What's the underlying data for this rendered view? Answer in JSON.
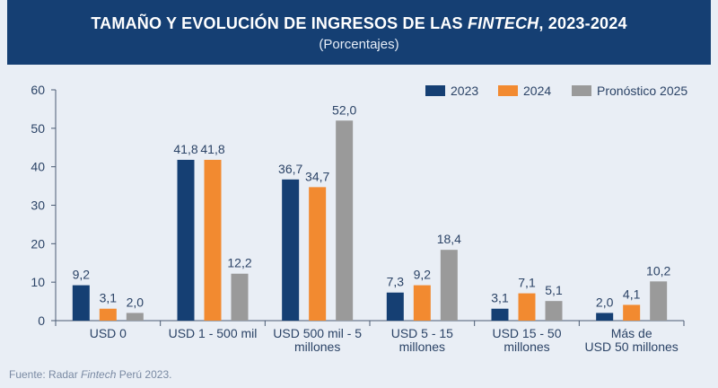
{
  "header": {
    "title_prefix": "TAMAÑO Y EVOLUCIÓN DE INGRESOS DE LAS ",
    "title_italic": "FINTECH",
    "title_suffix": ", 2023-2024",
    "subtitle": "(Porcentajes)"
  },
  "footer": {
    "source_prefix": "Fuente: Radar ",
    "source_italic": "Fintech",
    "source_suffix": " Perú 2023."
  },
  "chart_data": {
    "type": "bar",
    "title": "TAMAÑO Y EVOLUCIÓN DE INGRESOS DE LAS FINTECH, 2023-2024",
    "subtitle": "(Porcentajes)",
    "categories": [
      [
        "USD 0"
      ],
      [
        "USD 1 - 500 mil"
      ],
      [
        "USD 500 mil - 5",
        "millones"
      ],
      [
        "USD 5 - 15",
        "millones"
      ],
      [
        "USD 15 - 50",
        "millones"
      ],
      [
        "Más de",
        "USD 50 millones"
      ]
    ],
    "series": [
      {
        "name": "2023",
        "color": "#153f73",
        "values": [
          9.2,
          41.8,
          36.7,
          7.3,
          3.1,
          2.0
        ],
        "labels": [
          "9,2",
          "41,8",
          "36,7",
          "7,3",
          "3,1",
          "2,0"
        ]
      },
      {
        "name": "2024",
        "color": "#f28a30",
        "values": [
          3.1,
          41.8,
          34.7,
          9.2,
          7.1,
          4.1
        ],
        "labels": [
          "3,1",
          "41,8",
          "34,7",
          "9,2",
          "7,1",
          "4,1"
        ]
      },
      {
        "name": "Pronóstico 2025",
        "color": "#9a9a9a",
        "values": [
          2.0,
          12.2,
          52.0,
          18.4,
          5.1,
          10.2
        ],
        "labels": [
          "2,0",
          "12,2",
          "52,0",
          "18,4",
          "5,1",
          "10,2"
        ]
      }
    ],
    "ylim": [
      0,
      60
    ],
    "yticks": [
      0,
      10,
      20,
      30,
      40,
      50,
      60
    ],
    "xlabel": "",
    "ylabel": "",
    "legend_position": "top-right",
    "grid": false
  }
}
